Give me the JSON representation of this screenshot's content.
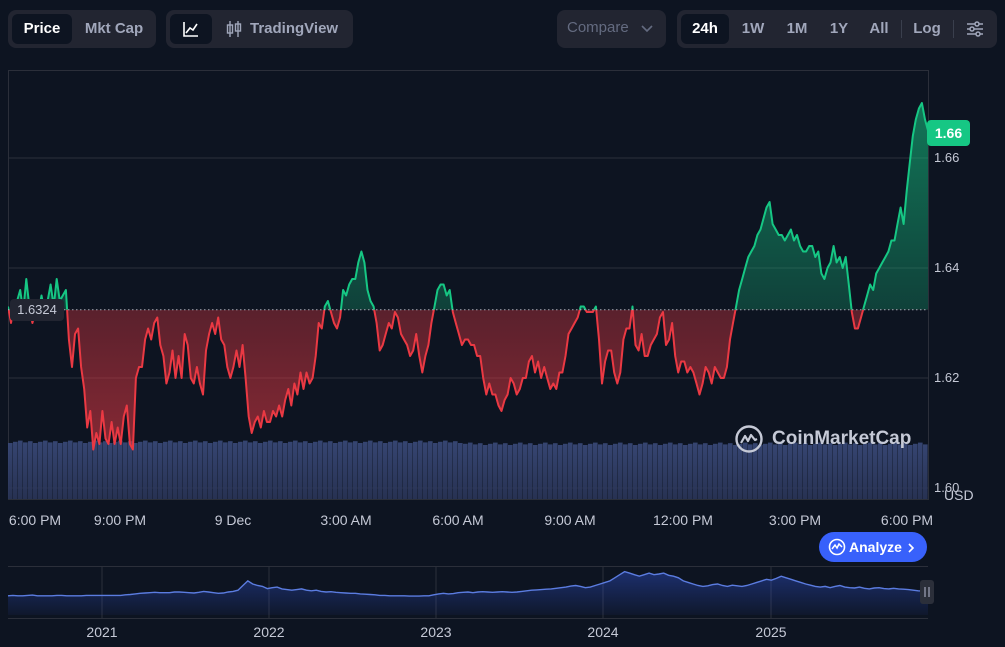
{
  "toolbar": {
    "metric_tabs": [
      {
        "label": "Price",
        "active": true
      },
      {
        "label": "Mkt Cap",
        "active": false
      }
    ],
    "tradingview_label": "TradingView",
    "compare_label": "Compare",
    "ranges": [
      {
        "label": "24h",
        "active": true
      },
      {
        "label": "1W",
        "active": false
      },
      {
        "label": "1M",
        "active": false
      },
      {
        "label": "1Y",
        "active": false
      },
      {
        "label": "All",
        "active": false
      }
    ],
    "log_label": "Log"
  },
  "price_badge": "1.66",
  "open_price_label": "1.6324",
  "currency_label": "USD",
  "watermark": "CoinMarketCap",
  "analyze_label": "Analyze",
  "colors": {
    "up": "#16c784",
    "down": "#ea3943",
    "accent": "#3861fb",
    "nav_line": "#5b7ce0"
  },
  "chart_data": {
    "type": "line",
    "ylim": [
      1.598,
      1.676
    ],
    "open_price": 1.6324,
    "y_ticks": [
      1.6,
      1.62,
      1.64,
      1.66
    ],
    "x_tick_labels": [
      "6:00 PM",
      "9:00 PM",
      "9 Dec",
      "3:00 AM",
      "6:00 AM",
      "9:00 AM",
      "12:00 PM",
      "3:00 PM",
      "6:00 PM"
    ],
    "series": [
      {
        "values": [
          1.633,
          1.63,
          1.633,
          1.634,
          1.636,
          1.632,
          1.638,
          1.633,
          1.63,
          1.632,
          1.632,
          1.635,
          1.632,
          1.634,
          1.637,
          1.633,
          1.638,
          1.634,
          1.635,
          1.636,
          1.627,
          1.622,
          1.628,
          1.629,
          1.622,
          1.618,
          1.611,
          1.614,
          1.607,
          1.61,
          1.608,
          1.614,
          1.609,
          1.608,
          1.612,
          1.608,
          1.611,
          1.608,
          1.613,
          1.615,
          1.608,
          1.607,
          1.62,
          1.622,
          1.622,
          1.627,
          1.629,
          1.627,
          1.63,
          1.631,
          1.626,
          1.624,
          1.619,
          1.621,
          1.625,
          1.62,
          1.624,
          1.62,
          1.628,
          1.626,
          1.62,
          1.619,
          1.622,
          1.619,
          1.617,
          1.625,
          1.628,
          1.63,
          1.628,
          1.631,
          1.627,
          1.626,
          1.622,
          1.62,
          1.622,
          1.625,
          1.622,
          1.626,
          1.62,
          1.613,
          1.61,
          1.612,
          1.613,
          1.611,
          1.614,
          1.612,
          1.612,
          1.614,
          1.613,
          1.615,
          1.613,
          1.616,
          1.618,
          1.615,
          1.619,
          1.617,
          1.621,
          1.618,
          1.621,
          1.619,
          1.62,
          1.624,
          1.63,
          1.629,
          1.633,
          1.634,
          1.632,
          1.63,
          1.629,
          1.631,
          1.636,
          1.635,
          1.637,
          1.638,
          1.638,
          1.641,
          1.643,
          1.641,
          1.636,
          1.634,
          1.633,
          1.63,
          1.625,
          1.626,
          1.628,
          1.63,
          1.629,
          1.632,
          1.631,
          1.628,
          1.627,
          1.626,
          1.624,
          1.625,
          1.628,
          1.624,
          1.621,
          1.624,
          1.626,
          1.63,
          1.633,
          1.636,
          1.637,
          1.637,
          1.635,
          1.636,
          1.632,
          1.63,
          1.628,
          1.626,
          1.627,
          1.627,
          1.626,
          1.626,
          1.624,
          1.624,
          1.62,
          1.617,
          1.619,
          1.617,
          1.617,
          1.615,
          1.614,
          1.616,
          1.617,
          1.62,
          1.619,
          1.617,
          1.618,
          1.62,
          1.62,
          1.623,
          1.624,
          1.621,
          1.623,
          1.62,
          1.622,
          1.62,
          1.618,
          1.619,
          1.618,
          1.621,
          1.621,
          1.624,
          1.628,
          1.629,
          1.63,
          1.631,
          1.633,
          1.633,
          1.632,
          1.632,
          1.632,
          1.633,
          1.627,
          1.619,
          1.623,
          1.625,
          1.625,
          1.621,
          1.619,
          1.621,
          1.627,
          1.629,
          1.629,
          1.633,
          1.626,
          1.625,
          1.628,
          1.624,
          1.624,
          1.626,
          1.627,
          1.628,
          1.631,
          1.632,
          1.626,
          1.627,
          1.63,
          1.624,
          1.621,
          1.623,
          1.623,
          1.621,
          1.622,
          1.621,
          1.619,
          1.617,
          1.619,
          1.622,
          1.621,
          1.619,
          1.622,
          1.621,
          1.62,
          1.62,
          1.622,
          1.627,
          1.63,
          1.633,
          1.636,
          1.638,
          1.64,
          1.642,
          1.643,
          1.644,
          1.646,
          1.647,
          1.649,
          1.651,
          1.652,
          1.648,
          1.647,
          1.646,
          1.646,
          1.645,
          1.646,
          1.647,
          1.645,
          1.646,
          1.644,
          1.643,
          1.643,
          1.644,
          1.644,
          1.642,
          1.643,
          1.639,
          1.638,
          1.64,
          1.641,
          1.644,
          1.641,
          1.642,
          1.64,
          1.642,
          1.637,
          1.632,
          1.629,
          1.629,
          1.631,
          1.633,
          1.635,
          1.637,
          1.636,
          1.639,
          1.64,
          1.641,
          1.642,
          1.643,
          1.645,
          1.645,
          1.648,
          1.651,
          1.648,
          1.654,
          1.659,
          1.664,
          1.667,
          1.669,
          1.67,
          1.667,
          1.665
        ]
      }
    ],
    "volume_note_none": "",
    "navigator": {
      "x_tick_labels": [
        "2021",
        "2022",
        "2023",
        "2024",
        "2025"
      ],
      "values": [
        0.62,
        0.63,
        0.62,
        0.62,
        0.63,
        0.64,
        0.62,
        0.62,
        0.62,
        0.62,
        0.63,
        0.63,
        0.62,
        0.62,
        0.62,
        0.62,
        0.63,
        0.63,
        0.63,
        0.63,
        0.63,
        0.63,
        0.63,
        0.63,
        0.65,
        0.66,
        0.68,
        0.7,
        0.71,
        0.72,
        0.73,
        0.72,
        0.72,
        0.72,
        0.74,
        0.74,
        0.73,
        0.72,
        0.71,
        0.73,
        0.76,
        0.74,
        0.72,
        0.7,
        0.71,
        0.74,
        0.76,
        0.8,
        0.95,
        1.1,
        1.0,
        0.95,
        0.92,
        0.85,
        0.88,
        0.9,
        0.84,
        0.82,
        0.8,
        0.82,
        0.84,
        0.8,
        0.78,
        0.8,
        0.76,
        0.74,
        0.75,
        0.73,
        0.72,
        0.71,
        0.7,
        0.7,
        0.68,
        0.67,
        0.66,
        0.65,
        0.63,
        0.63,
        0.62,
        0.62,
        0.62,
        0.62,
        0.61,
        0.61,
        0.61,
        0.62,
        0.62,
        0.65,
        0.68,
        0.7,
        0.68,
        0.69,
        0.72,
        0.73,
        0.74,
        0.72,
        0.74,
        0.75,
        0.74,
        0.73,
        0.74,
        0.75,
        0.74,
        0.73,
        0.74,
        0.76,
        0.78,
        0.8,
        0.81,
        0.82,
        0.83,
        0.84,
        0.86,
        0.88,
        0.9,
        0.93,
        0.95,
        0.92,
        0.88,
        0.9,
        0.95,
        1.0,
        1.05,
        1.1,
        1.2,
        1.3,
        1.4,
        1.35,
        1.3,
        1.25,
        1.3,
        1.35,
        1.3,
        1.32,
        1.35,
        1.28,
        1.25,
        1.2,
        1.1,
        1.05,
        1.0,
        0.95,
        0.92,
        0.94,
        0.98,
        1.0,
        0.95,
        0.92,
        0.96,
        0.94,
        0.92,
        0.95,
        1.0,
        1.05,
        1.1,
        1.15,
        1.12,
        1.18,
        1.25,
        1.2,
        1.15,
        1.1,
        1.05,
        1.0,
        0.96,
        0.92,
        0.9,
        0.92,
        0.88,
        0.92,
        0.95,
        0.9,
        0.88,
        0.87,
        0.9,
        0.86,
        0.84,
        0.87,
        0.88,
        0.85,
        0.84,
        0.86,
        0.84,
        0.83,
        0.82,
        0.8,
        0.78,
        0.77,
        0.76
      ]
    }
  }
}
